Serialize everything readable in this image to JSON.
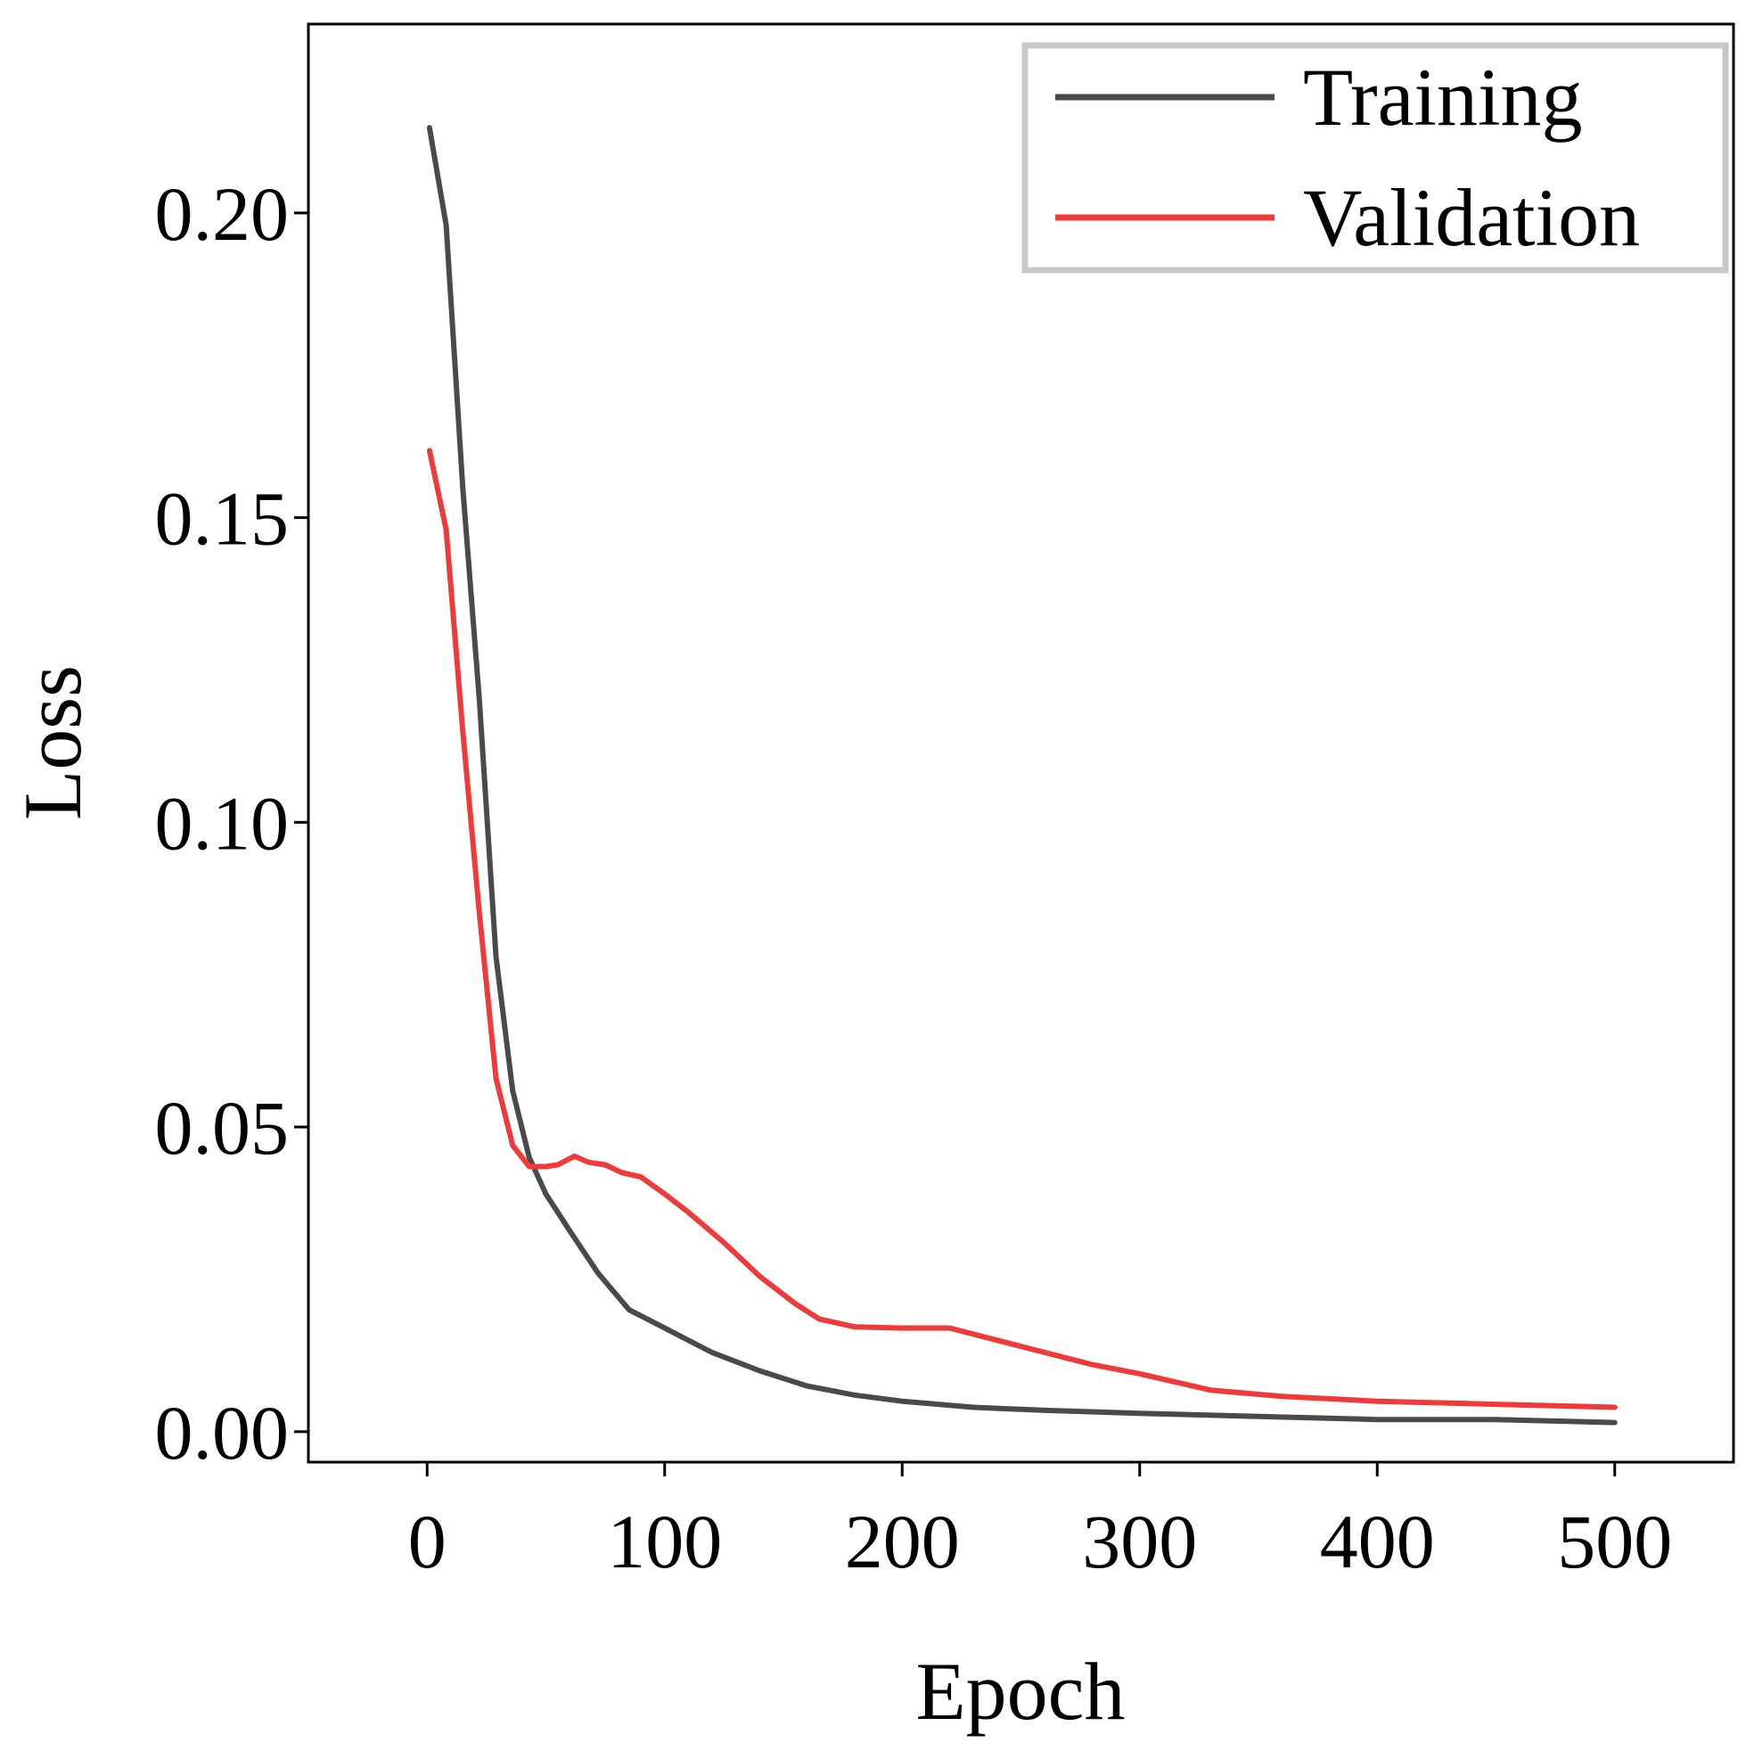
{
  "chart_data": {
    "type": "line",
    "title": "",
    "xlabel": "Epoch",
    "ylabel": "Loss",
    "xlim": [
      -50,
      550
    ],
    "ylim": [
      -0.005,
      0.231
    ],
    "xticks": [
      0,
      100,
      200,
      300,
      400,
      500
    ],
    "xtick_labels": [
      "0",
      "100",
      "200",
      "300",
      "400",
      "500"
    ],
    "yticks": [
      0.0,
      0.05,
      0.1,
      0.15,
      0.2
    ],
    "ytick_labels": [
      "0.00",
      "0.05",
      "0.10",
      "0.15",
      "0.20"
    ],
    "grid": false,
    "legend_position": "top-right",
    "series": [
      {
        "name": "Training",
        "color": "#4a4a4a",
        "x": [
          1,
          8,
          15,
          22,
          29,
          36,
          43,
          50,
          60,
          72,
          85,
          100,
          120,
          140,
          160,
          180,
          200,
          230,
          260,
          300,
          350,
          400,
          450,
          500
        ],
        "y": [
          0.214,
          0.198,
          0.155,
          0.12,
          0.078,
          0.056,
          0.045,
          0.039,
          0.033,
          0.026,
          0.02,
          0.017,
          0.013,
          0.01,
          0.0075,
          0.006,
          0.005,
          0.004,
          0.0035,
          0.003,
          0.0025,
          0.002,
          0.002,
          0.0015
        ]
      },
      {
        "name": "Validation",
        "color": "#f03a3a",
        "x": [
          1,
          8,
          15,
          22,
          29,
          36,
          43,
          50,
          55,
          62,
          68,
          75,
          82,
          90,
          100,
          110,
          125,
          140,
          155,
          165,
          180,
          200,
          220,
          240,
          260,
          280,
          300,
          330,
          360,
          400,
          450,
          500
        ],
        "y": [
          0.161,
          0.148,
          0.115,
          0.085,
          0.058,
          0.047,
          0.0435,
          0.0435,
          0.0438,
          0.0452,
          0.0442,
          0.0438,
          0.0425,
          0.0418,
          0.039,
          0.036,
          0.031,
          0.0255,
          0.021,
          0.0185,
          0.0172,
          0.017,
          0.017,
          0.015,
          0.013,
          0.011,
          0.0095,
          0.0068,
          0.0058,
          0.005,
          0.0045,
          0.004
        ]
      }
    ]
  }
}
